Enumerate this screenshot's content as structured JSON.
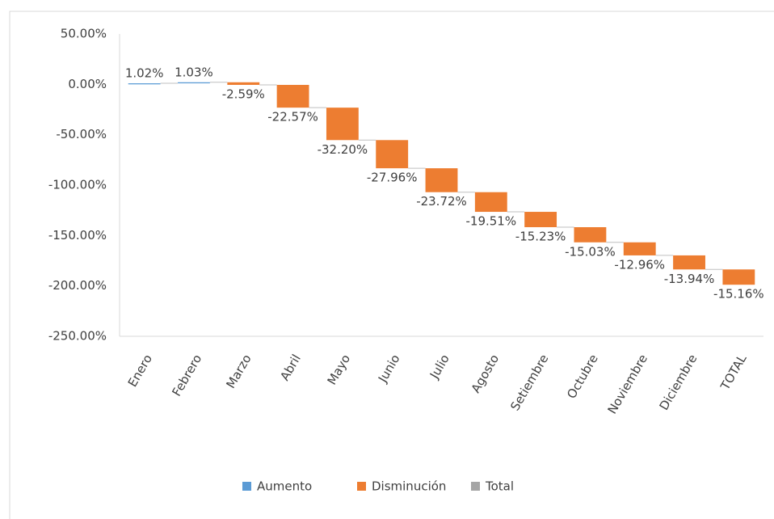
{
  "chart_data": {
    "type": "waterfall",
    "categories": [
      "Enero",
      "Febrero",
      "Marzo",
      "Abril",
      "Mayo",
      "Junio",
      "Julio",
      "Agosto",
      "Setiembre",
      "Octubre",
      "Noviembre",
      "Diciembre",
      "TOTAL"
    ],
    "values": [
      1.02,
      1.03,
      -2.59,
      -22.57,
      -32.2,
      -27.96,
      -23.72,
      -19.51,
      -15.23,
      -15.03,
      -12.96,
      -13.94,
      -15.16
    ],
    "value_labels": [
      "1.02%",
      "1.03%",
      "-2.59%",
      "-22.57%",
      "-32.20%",
      "-27.96%",
      "-23.72%",
      "-19.51%",
      "-15.23%",
      "-15.03%",
      "-12.96%",
      "-13.94%",
      "-15.16%"
    ],
    "legend": [
      {
        "name": "Aumento",
        "color": "#5b9bd5"
      },
      {
        "name": "Disminución",
        "color": "#ed7d31"
      },
      {
        "name": "Total",
        "color": "#a5a5a5"
      }
    ],
    "ylim": [
      -250,
      50
    ],
    "yticks": [
      {
        "value": 50,
        "label": "50.00%"
      },
      {
        "value": 0,
        "label": "0.00%"
      },
      {
        "value": -50,
        "label": "-50.00%"
      },
      {
        "value": -100,
        "label": "-100.00%"
      },
      {
        "value": -150,
        "label": "-150.00%"
      },
      {
        "value": -200,
        "label": "-200.00%"
      },
      {
        "value": -250,
        "label": "-250.00%"
      }
    ],
    "grid": false
  }
}
